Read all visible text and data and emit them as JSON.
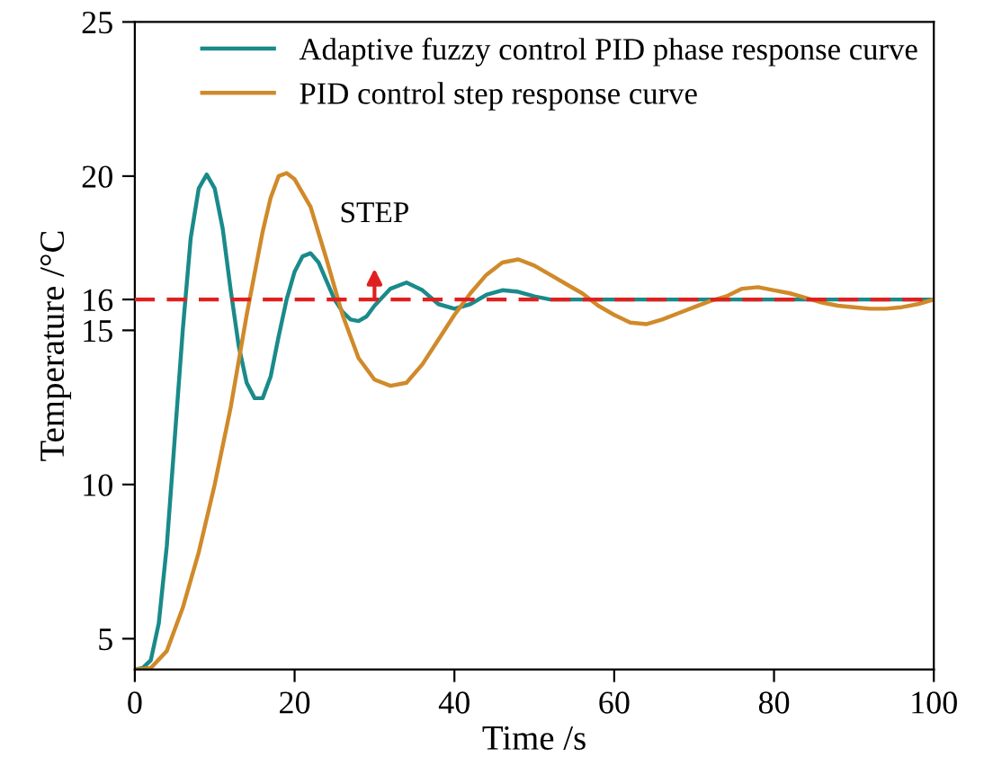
{
  "chart_data": {
    "type": "line",
    "xlabel": "Time /s",
    "ylabel": "Temperature /°C",
    "xlim": [
      0,
      100
    ],
    "xticks": [
      0,
      20,
      40,
      60,
      80,
      100
    ],
    "ylim": [
      4,
      25
    ],
    "yticks": [
      5,
      10,
      15,
      16,
      20,
      25
    ],
    "grid": false,
    "legend": "top right",
    "marker": "none",
    "line_style": "solid",
    "series": [
      {
        "name": "Adaptive fuzzy control PID phase response curve",
        "color": "#1a8a8a",
        "x": [
          0,
          1,
          2,
          3,
          4,
          5,
          6,
          7,
          8,
          9,
          10,
          11,
          12,
          13,
          14,
          15,
          16,
          17,
          18,
          19,
          20,
          21,
          22,
          23,
          24,
          25,
          26,
          27,
          28,
          29,
          30,
          32,
          34,
          36,
          38,
          40,
          42,
          44,
          46,
          48,
          50,
          52,
          60,
          100
        ],
        "values": [
          4,
          4.05,
          4.3,
          5.5,
          8,
          11.5,
          15,
          18,
          19.6,
          20.05,
          19.6,
          18.3,
          16.3,
          14.5,
          13.3,
          12.8,
          12.8,
          13.5,
          14.8,
          16,
          16.9,
          17.4,
          17.5,
          17.2,
          16.6,
          16,
          15.6,
          15.35,
          15.3,
          15.45,
          15.8,
          16.35,
          16.55,
          16.3,
          15.85,
          15.7,
          15.85,
          16.15,
          16.3,
          16.25,
          16.1,
          16,
          16,
          16
        ]
      },
      {
        "name": "PID control step response curve",
        "color": "#d08a2a",
        "x": [
          0,
          2,
          4,
          6,
          8,
          10,
          12,
          14,
          16,
          17,
          18,
          19,
          20,
          22,
          24,
          26,
          28,
          30,
          32,
          34,
          36,
          38,
          40,
          42,
          44,
          46,
          48,
          50,
          52,
          54,
          56,
          58,
          60,
          62,
          64,
          66,
          68,
          70,
          72,
          74,
          76,
          78,
          80,
          82,
          84,
          86,
          88,
          90,
          92,
          94,
          96,
          98,
          100
        ],
        "values": [
          4,
          4.05,
          4.6,
          6,
          7.8,
          10,
          12.5,
          15.5,
          18.2,
          19.3,
          20,
          20.1,
          19.9,
          19,
          17.3,
          15.5,
          14.1,
          13.4,
          13.2,
          13.3,
          13.9,
          14.7,
          15.5,
          16.2,
          16.8,
          17.2,
          17.3,
          17.1,
          16.8,
          16.5,
          16.2,
          15.8,
          15.5,
          15.25,
          15.2,
          15.35,
          15.55,
          15.75,
          15.95,
          16.1,
          16.35,
          16.4,
          16.3,
          16.2,
          16.05,
          15.9,
          15.8,
          15.75,
          15.7,
          15.7,
          15.75,
          15.85,
          16
        ]
      }
    ],
    "ref_lines": [
      {
        "axis": "y",
        "value": 16,
        "color": "#e02020",
        "line_style": "dashed"
      }
    ],
    "annotations": [
      {
        "text": "STEP",
        "x": 30,
        "y": 16
      }
    ]
  }
}
